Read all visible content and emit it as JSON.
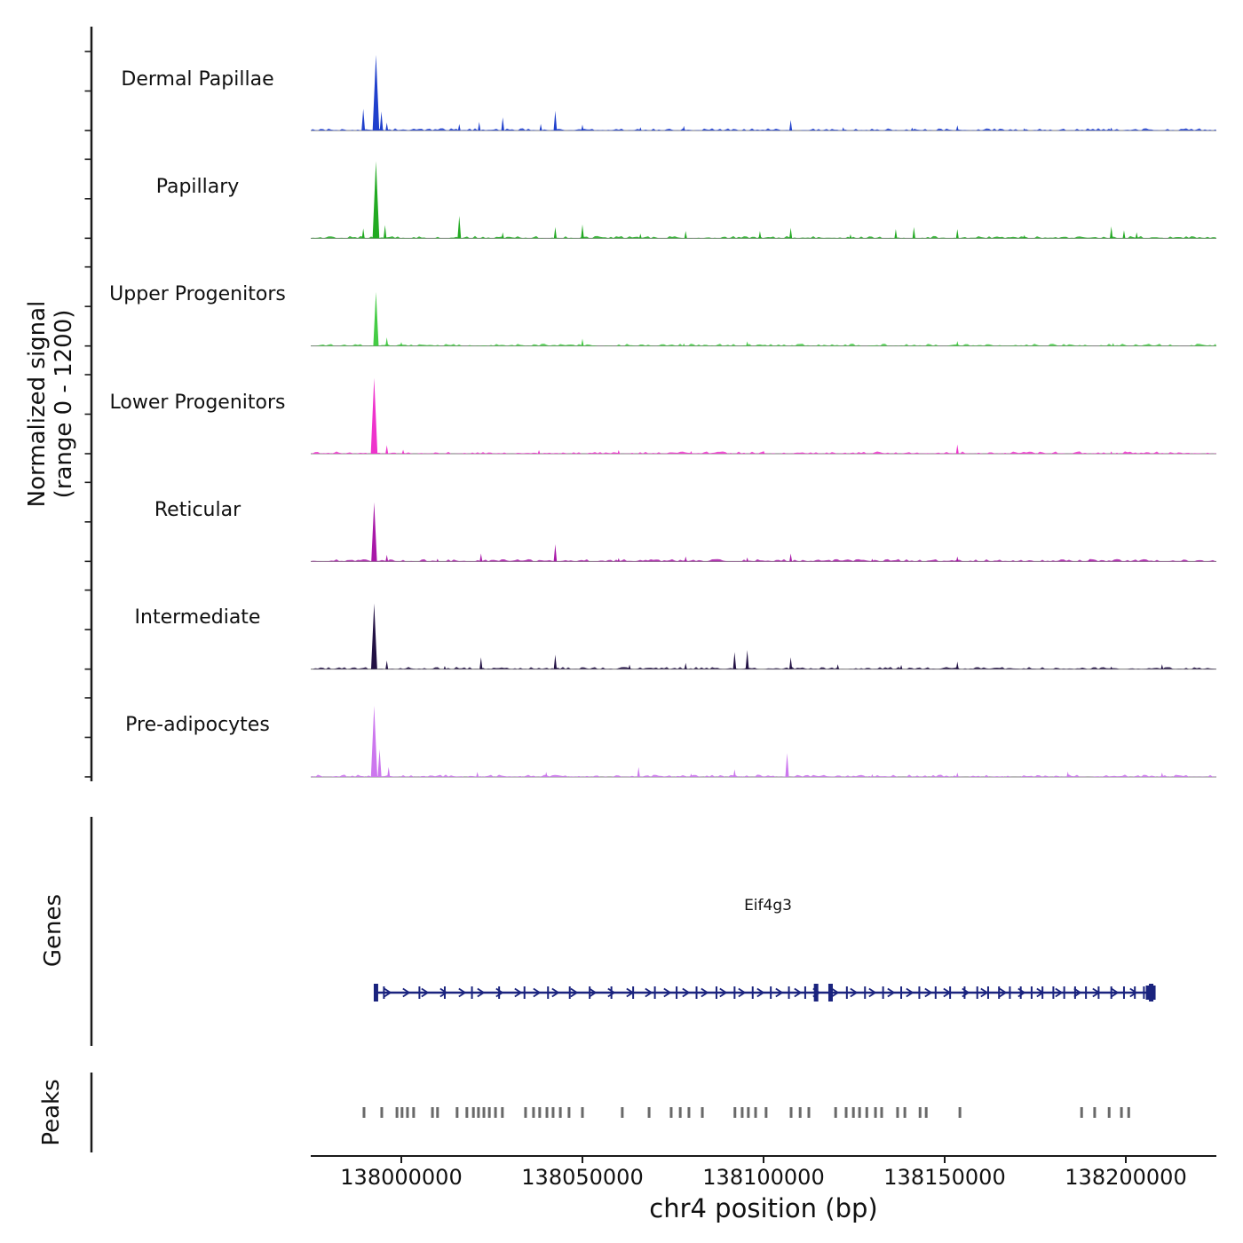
{
  "labels": {
    "ylabel_line1": "Normalized signal",
    "ylabel_line2": "(range 0 - 1200)",
    "xlabel": "chr4 position (bp)",
    "genes": "Genes",
    "peaks": "Peaks"
  },
  "chart_data": {
    "type": "area",
    "title": "",
    "xlabel": "chr4 position (bp)",
    "ylabel": "Normalized signal (range 0 - 1200)",
    "xlim": [
      137975000,
      138225000
    ],
    "ylim_per_track": [
      0,
      1200
    ],
    "x_ticks": [
      138000000,
      138050000,
      138100000,
      138150000,
      138200000
    ],
    "x_tick_labels": [
      "138000000",
      "138050000",
      "138100000",
      "138150000",
      "138200000"
    ],
    "tracks": [
      {
        "name": "Dermal Papillae",
        "color": "#2040cc",
        "peaks": [
          [
            137989500,
            330
          ],
          [
            137993000,
            1150
          ],
          [
            137994500,
            290
          ],
          [
            137996000,
            120
          ],
          [
            138016000,
            100
          ],
          [
            138021500,
            130
          ],
          [
            138028000,
            200
          ],
          [
            138038500,
            100
          ],
          [
            138042500,
            300
          ],
          [
            138050000,
            90
          ],
          [
            138066000,
            50
          ],
          [
            138078000,
            70
          ],
          [
            138107500,
            160
          ],
          [
            138122000,
            50
          ],
          [
            138141000,
            45
          ],
          [
            138153500,
            80
          ],
          [
            138172000,
            35
          ],
          [
            138196000,
            45
          ]
        ]
      },
      {
        "name": "Papillary",
        "color": "#22aa22",
        "peaks": [
          [
            137989500,
            150
          ],
          [
            137993000,
            1170
          ],
          [
            137995500,
            200
          ],
          [
            138016000,
            340
          ],
          [
            138028000,
            90
          ],
          [
            138042500,
            170
          ],
          [
            138050000,
            210
          ],
          [
            138066000,
            70
          ],
          [
            138078500,
            110
          ],
          [
            138099000,
            110
          ],
          [
            138107500,
            160
          ],
          [
            138124000,
            60
          ],
          [
            138136500,
            140
          ],
          [
            138141500,
            170
          ],
          [
            138153500,
            140
          ],
          [
            138172000,
            50
          ],
          [
            138196000,
            180
          ],
          [
            138199500,
            120
          ],
          [
            138203000,
            90
          ]
        ]
      },
      {
        "name": "Upper Progenitors",
        "color": "#44cc44",
        "peaks": [
          [
            137993000,
            820
          ],
          [
            137996000,
            130
          ],
          [
            138000000,
            60
          ],
          [
            138050000,
            110
          ],
          [
            138078000,
            40
          ],
          [
            138095500,
            70
          ],
          [
            138153500,
            75
          ],
          [
            138196500,
            45
          ]
        ]
      },
      {
        "name": "Lower Progenitors",
        "color": "#ee33cc",
        "peaks": [
          [
            137992500,
            1150
          ],
          [
            137996000,
            130
          ],
          [
            138000500,
            60
          ],
          [
            138038000,
            55
          ],
          [
            138060000,
            55
          ],
          [
            138080000,
            40
          ],
          [
            138100000,
            45
          ],
          [
            138153500,
            140
          ],
          [
            138196000,
            35
          ]
        ]
      },
      {
        "name": "Reticular",
        "color": "#a818a8",
        "peaks": [
          [
            137992500,
            900
          ],
          [
            137996000,
            100
          ],
          [
            138010000,
            40
          ],
          [
            138022000,
            120
          ],
          [
            138042500,
            260
          ],
          [
            138060000,
            50
          ],
          [
            138078500,
            75
          ],
          [
            138095500,
            60
          ],
          [
            138107500,
            120
          ],
          [
            138130000,
            40
          ],
          [
            138153500,
            75
          ],
          [
            138190000,
            40
          ]
        ]
      },
      {
        "name": "Intermediate",
        "color": "#221144",
        "peaks": [
          [
            137992500,
            1000
          ],
          [
            137996000,
            130
          ],
          [
            138012000,
            50
          ],
          [
            138022000,
            180
          ],
          [
            138042500,
            220
          ],
          [
            138063000,
            70
          ],
          [
            138078500,
            95
          ],
          [
            138092000,
            260
          ],
          [
            138095500,
            290
          ],
          [
            138107500,
            180
          ],
          [
            138120500,
            75
          ],
          [
            138138000,
            65
          ],
          [
            138153500,
            115
          ],
          [
            138196000,
            40
          ],
          [
            138210000,
            75
          ]
        ]
      },
      {
        "name": "Pre-adipocytes",
        "color": "#cc77ee",
        "peaks": [
          [
            137992500,
            1080
          ],
          [
            137994000,
            420
          ],
          [
            137996500,
            150
          ],
          [
            138021000,
            75
          ],
          [
            138040000,
            75
          ],
          [
            138065500,
            150
          ],
          [
            138080000,
            50
          ],
          [
            138092000,
            115
          ],
          [
            138106500,
            360
          ],
          [
            138130000,
            40
          ],
          [
            138153500,
            65
          ],
          [
            138184000,
            80
          ],
          [
            138210000,
            65
          ]
        ]
      }
    ],
    "gene": {
      "name": "Eif4g3",
      "chrom": "chr4",
      "start": 137992600,
      "end": 138207000,
      "strand": "+",
      "color": "#1a237e",
      "exons": [
        [
          137993000,
          1
        ],
        [
          137995200,
          0
        ],
        [
          138005000,
          0
        ],
        [
          138012000,
          0
        ],
        [
          138019500,
          0
        ],
        [
          138027000,
          0
        ],
        [
          138034000,
          0
        ],
        [
          138040500,
          0
        ],
        [
          138046500,
          0
        ],
        [
          138052000,
          0
        ],
        [
          138058000,
          0
        ],
        [
          138064000,
          0
        ],
        [
          138070000,
          0
        ],
        [
          138076000,
          0
        ],
        [
          138081500,
          0
        ],
        [
          138087000,
          0
        ],
        [
          138092000,
          0
        ],
        [
          138097000,
          0
        ],
        [
          138102000,
          0
        ],
        [
          138107000,
          0
        ],
        [
          138111500,
          0
        ],
        [
          138114500,
          1
        ],
        [
          138118500,
          1
        ],
        [
          138123000,
          0
        ],
        [
          138128000,
          0
        ],
        [
          138133000,
          0
        ],
        [
          138138000,
          0
        ],
        [
          138143000,
          0
        ],
        [
          138147500,
          0
        ],
        [
          138151500,
          0
        ],
        [
          138155500,
          0
        ],
        [
          138159000,
          0
        ],
        [
          138162000,
          0
        ],
        [
          138165000,
          0
        ],
        [
          138168000,
          0
        ],
        [
          138171000,
          0
        ],
        [
          138174000,
          0
        ],
        [
          138177000,
          0
        ],
        [
          138180000,
          0
        ],
        [
          138183000,
          0
        ],
        [
          138186000,
          0
        ],
        [
          138189000,
          0
        ],
        [
          138192500,
          0
        ],
        [
          138196000,
          0
        ],
        [
          138199500,
          0
        ],
        [
          138202500,
          0
        ],
        [
          138205000,
          0
        ],
        [
          138207000,
          1
        ]
      ]
    },
    "peaks_track": {
      "color": "#696969",
      "positions": [
        137989700,
        137994600,
        137998800,
        138000200,
        138001700,
        138003400,
        138008600,
        138010000,
        138015400,
        138018100,
        138019900,
        138021300,
        138022800,
        138024300,
        138026000,
        138027900,
        138034300,
        138036500,
        138038200,
        138040200,
        138041900,
        138043900,
        138046300,
        138050000,
        138061000,
        138068400,
        138074500,
        138077000,
        138079400,
        138083100,
        138092100,
        138094100,
        138095800,
        138097800,
        138100700,
        138107600,
        138110100,
        138112500,
        138119900,
        138122800,
        138124800,
        138126500,
        138128500,
        138130900,
        138132600,
        138137000,
        138139000,
        138143200,
        138144900,
        138154200,
        138187800,
        138191400,
        138195400,
        138198800,
        138200800
      ]
    }
  }
}
